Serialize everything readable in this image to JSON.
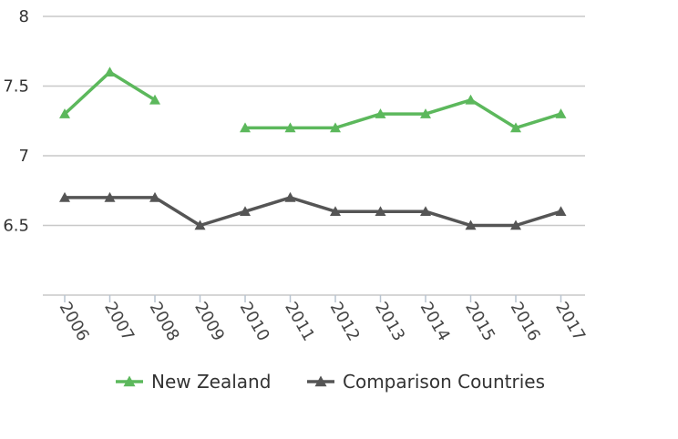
{
  "chart_data": {
    "type": "line",
    "title": "",
    "xlabel": "",
    "ylabel": "",
    "categories": [
      "2006",
      "2007",
      "2008",
      "2009",
      "2010",
      "2011",
      "2012",
      "2013",
      "2014",
      "2015",
      "2016",
      "2017"
    ],
    "yticks": [
      "6.5",
      "7",
      "7.5",
      "8"
    ],
    "ylim": [
      6,
      8
    ],
    "grid": true,
    "legend_position": "bottom",
    "series": [
      {
        "name": "New Zealand",
        "color": "#5cb85c",
        "marker": "triangle",
        "values": [
          7.3,
          7.6,
          7.4,
          null,
          7.2,
          7.2,
          7.2,
          7.3,
          7.3,
          7.4,
          7.2,
          7.3
        ]
      },
      {
        "name": "Comparison Countries",
        "color": "#555555",
        "marker": "triangle",
        "values": [
          6.7,
          6.7,
          6.7,
          6.5,
          6.6,
          6.7,
          6.6,
          6.6,
          6.6,
          6.5,
          6.5,
          6.6
        ]
      }
    ]
  }
}
